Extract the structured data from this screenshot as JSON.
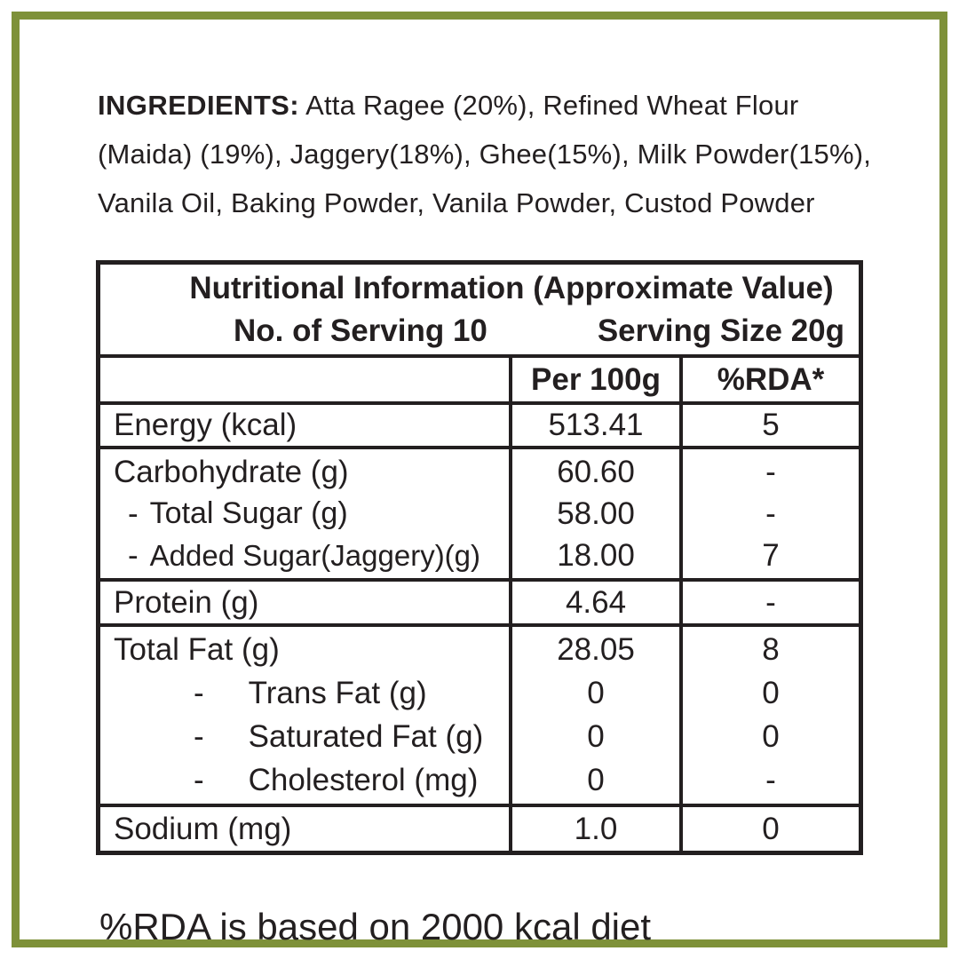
{
  "page": {
    "background": "#ffffff",
    "border_color": "#7e9139",
    "text_color": "#231f20"
  },
  "ingredients": {
    "label": "INGREDIENTS:",
    "text": "Atta Ragee (20%), Refined Wheat Flour (Maida) (19%), Jaggery(18%), Ghee(15%), Milk Powder(15%), Vanila Oil, Baking Powder, Vanila Powder, Custod Powder"
  },
  "table": {
    "title": "Nutritional Information (Approximate Value)",
    "servings": {
      "left": "No. of Serving 10",
      "right": "Serving Size 20g"
    },
    "columns": {
      "per100g": "Per 100g",
      "rda": "%RDA*"
    },
    "rows": [
      {
        "name": "energy",
        "lines": [
          {
            "label": "Energy (kcal)",
            "per100g": "513.41",
            "rda": "5"
          }
        ]
      },
      {
        "name": "carbohydrate",
        "lines": [
          {
            "label": "Carbohydrate (g)",
            "per100g": "60.60",
            "rda": "-"
          },
          {
            "dash": "-",
            "label": "Total Sugar (g)",
            "per100g": "58.00",
            "rda": "-"
          },
          {
            "dash": "-",
            "label": "Added Sugar(Jaggery)(g)",
            "per100g": "18.00",
            "rda": "7"
          }
        ]
      },
      {
        "name": "protein",
        "lines": [
          {
            "label": "Protein (g)",
            "per100g": "4.64",
            "rda": "-"
          }
        ]
      },
      {
        "name": "total-fat",
        "lines": [
          {
            "label": "Total Fat (g)",
            "per100g": "28.05",
            "rda": "8"
          },
          {
            "dash": "-",
            "label": "Trans Fat (g)",
            "per100g": "0",
            "rda": "0"
          },
          {
            "dash": "-",
            "label": "Saturated Fat (g)",
            "per100g": "0",
            "rda": "0"
          },
          {
            "dash": "-",
            "label": "Cholesterol (mg)",
            "per100g": "0",
            "rda": "-"
          }
        ]
      },
      {
        "name": "sodium",
        "lines": [
          {
            "label": "Sodium (mg)",
            "per100g": "1.0",
            "rda": "0"
          }
        ]
      }
    ]
  },
  "footnote": "%RDA is based on 2000 kcal diet"
}
